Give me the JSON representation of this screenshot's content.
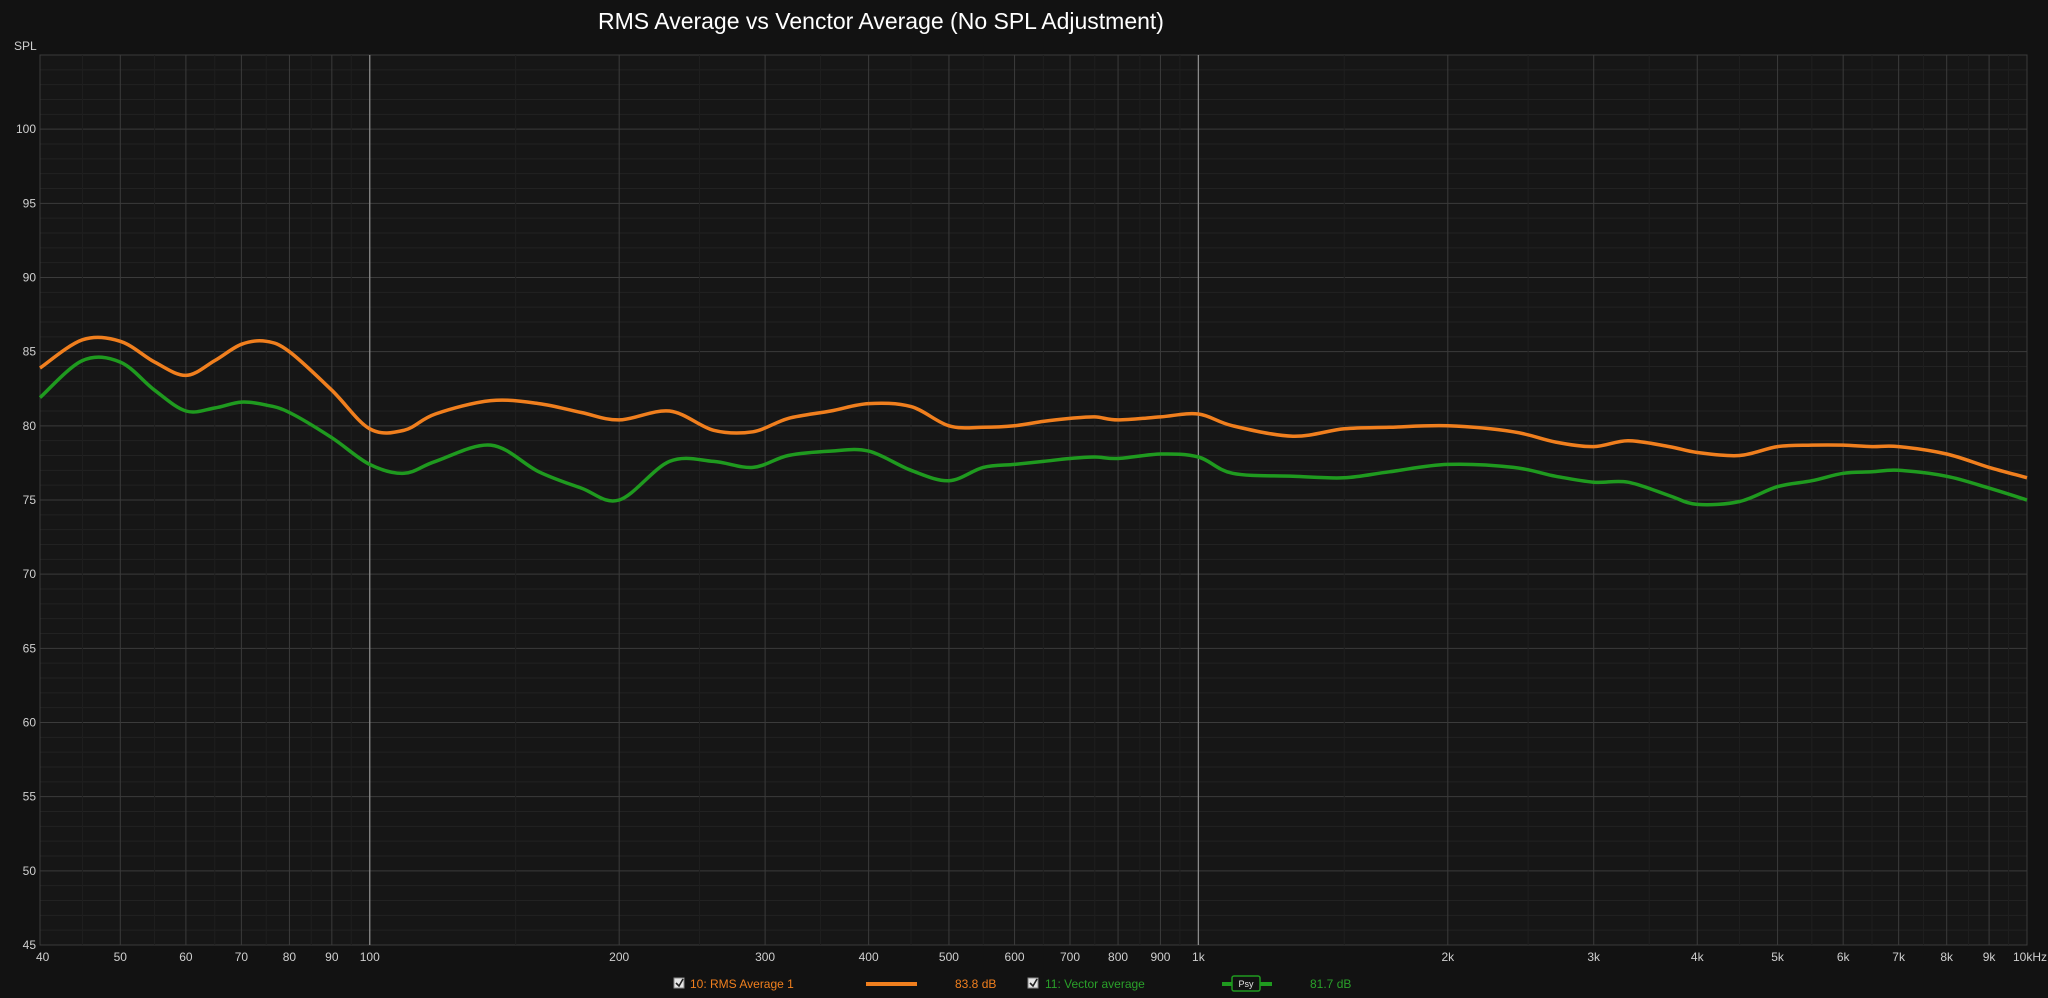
{
  "chart_data": {
    "type": "line",
    "title": "RMS Average vs Venctor Average (No SPL Adjustment)",
    "ylabel": "SPL",
    "x_scale": "log",
    "xlim": [
      40,
      10000
    ],
    "ylim": [
      45,
      105
    ],
    "grid": true,
    "y_ticks": [
      "100",
      "95",
      "90",
      "85",
      "80",
      "75",
      "70",
      "65",
      "60",
      "55",
      "50",
      "45"
    ],
    "y_tick_values": [
      100,
      95,
      90,
      85,
      80,
      75,
      70,
      65,
      60,
      55,
      50,
      45
    ],
    "x_ticks": [
      {
        "v": 40,
        "label": "40"
      },
      {
        "v": 50,
        "label": "50"
      },
      {
        "v": 60,
        "label": "60"
      },
      {
        "v": 70,
        "label": "70"
      },
      {
        "v": 80,
        "label": "80"
      },
      {
        "v": 90,
        "label": "90"
      },
      {
        "v": 100,
        "label": "100"
      },
      {
        "v": 200,
        "label": "200"
      },
      {
        "v": 300,
        "label": "300"
      },
      {
        "v": 400,
        "label": "400"
      },
      {
        "v": 500,
        "label": "500"
      },
      {
        "v": 600,
        "label": "600"
      },
      {
        "v": 700,
        "label": "700"
      },
      {
        "v": 800,
        "label": "800"
      },
      {
        "v": 900,
        "label": "900"
      },
      {
        "v": 1000,
        "label": "1k"
      },
      {
        "v": 2000,
        "label": "2k"
      },
      {
        "v": 3000,
        "label": "3k"
      },
      {
        "v": 4000,
        "label": "4k"
      },
      {
        "v": 5000,
        "label": "5k"
      },
      {
        "v": 6000,
        "label": "6k"
      },
      {
        "v": 7000,
        "label": "7k"
      },
      {
        "v": 8000,
        "label": "8k"
      },
      {
        "v": 9000,
        "label": "9k"
      },
      {
        "v": 10000,
        "label": "10kHz"
      }
    ],
    "series": [
      {
        "name": "10: RMS Average 1",
        "color": "#f07f1e",
        "x": [
          40,
          45,
          50,
          55,
          60,
          65,
          70,
          75,
          80,
          90,
          100,
          110,
          120,
          140,
          160,
          180,
          200,
          230,
          260,
          290,
          320,
          360,
          400,
          450,
          500,
          550,
          600,
          650,
          700,
          750,
          800,
          900,
          1000,
          1100,
          1300,
          1500,
          1700,
          2000,
          2400,
          2700,
          3000,
          3300,
          3700,
          4000,
          4500,
          5000,
          5500,
          6000,
          6500,
          7000,
          8000,
          9000,
          10000
        ],
        "y": [
          83.9,
          85.8,
          85.7,
          84.3,
          83.4,
          84.4,
          85.5,
          85.7,
          85.0,
          82.4,
          79.8,
          79.7,
          80.8,
          81.7,
          81.5,
          80.9,
          80.4,
          81.0,
          79.7,
          79.6,
          80.5,
          81.0,
          81.5,
          81.3,
          80.0,
          79.9,
          80.0,
          80.3,
          80.5,
          80.6,
          80.4,
          80.6,
          80.8,
          80.0,
          79.3,
          79.8,
          79.9,
          80.0,
          79.6,
          78.9,
          78.6,
          79.0,
          78.6,
          78.2,
          78.0,
          78.6,
          78.7,
          78.7,
          78.6,
          78.6,
          78.1,
          77.2,
          76.5
        ]
      },
      {
        "name": "11: Vector average",
        "color": "#1f9a1f",
        "x": [
          40,
          45,
          50,
          55,
          60,
          65,
          70,
          75,
          80,
          90,
          100,
          110,
          120,
          140,
          160,
          180,
          200,
          230,
          260,
          290,
          320,
          360,
          400,
          450,
          500,
          550,
          600,
          650,
          700,
          750,
          800,
          900,
          1000,
          1100,
          1300,
          1500,
          1700,
          2000,
          2400,
          2700,
          3000,
          3300,
          3700,
          4000,
          4500,
          5000,
          5500,
          6000,
          6500,
          7000,
          8000,
          9000,
          10000
        ],
        "y": [
          81.9,
          84.4,
          84.3,
          82.4,
          81.0,
          81.2,
          81.6,
          81.4,
          80.9,
          79.2,
          77.4,
          76.8,
          77.6,
          78.7,
          76.9,
          75.8,
          75.0,
          77.6,
          77.6,
          77.2,
          78.0,
          78.3,
          78.3,
          77.0,
          76.3,
          77.2,
          77.4,
          77.6,
          77.8,
          77.9,
          77.8,
          78.1,
          77.9,
          76.8,
          76.6,
          76.5,
          76.9,
          77.4,
          77.2,
          76.6,
          76.2,
          76.2,
          75.3,
          74.7,
          74.9,
          75.9,
          76.3,
          76.8,
          76.9,
          77.0,
          76.6,
          75.8,
          75.0
        ]
      }
    ]
  },
  "legend": {
    "item1_label": "10: RMS Average 1",
    "item1_value": "83.8 dB",
    "item2_label": "11: Vector average",
    "item2_value": "81.7 dB",
    "item2_badge": "Psy"
  }
}
